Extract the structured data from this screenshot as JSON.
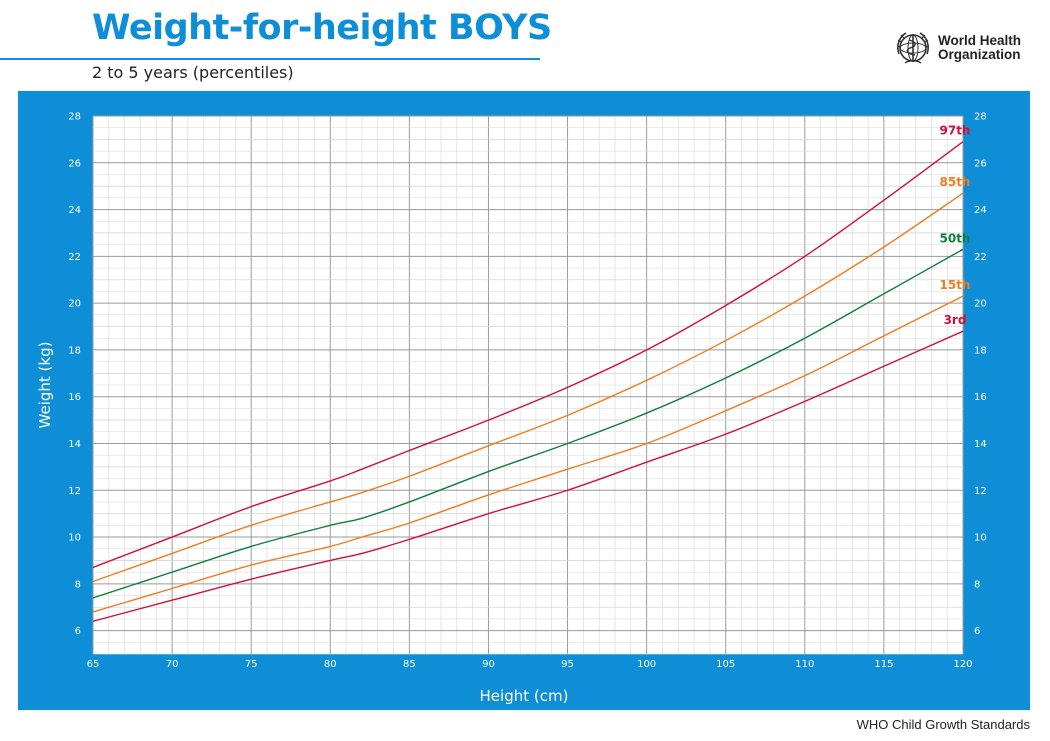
{
  "header": {
    "title": "Weight-for-height BOYS",
    "subtitle": "2 to 5 years (percentiles)"
  },
  "logo": {
    "line1": "World Health",
    "line2": "Organization",
    "icon": "who-emblem-icon"
  },
  "footer": {
    "text": "WHO Child Growth Standards"
  },
  "colors": {
    "panel": "#0d8ed6",
    "grid_major": "#9a9a9a",
    "grid_minor": "#d6d6d6",
    "p3": "#d1103c",
    "p15": "#ef7d1f",
    "p50": "#0e7f3a",
    "p85": "#ef7d1f",
    "p97": "#d1103c"
  },
  "chart_data": {
    "type": "line",
    "xlabel": "Height (cm)",
    "ylabel": "Weight (kg)",
    "xlim": [
      65,
      120
    ],
    "ylim": [
      5,
      28
    ],
    "x_ticks": [
      "65",
      "70",
      "75",
      "80",
      "85",
      "90",
      "95",
      "100",
      "105",
      "110",
      "115",
      "120"
    ],
    "y_ticks": [
      "6",
      "8",
      "10",
      "12",
      "14",
      "16",
      "18",
      "20",
      "22",
      "24",
      "26",
      "28"
    ],
    "grid": true,
    "x": [
      65,
      70,
      75,
      80,
      82,
      85,
      90,
      95,
      100,
      105,
      110,
      115,
      120
    ],
    "series": [
      {
        "name": "97th",
        "color": "#d1103c",
        "values": [
          8.7,
          10.0,
          11.3,
          12.4,
          12.9,
          13.7,
          15.0,
          16.4,
          18.0,
          19.9,
          22.0,
          24.4,
          26.9
        ]
      },
      {
        "name": "85th",
        "color": "#ef7d1f",
        "values": [
          8.1,
          9.3,
          10.5,
          11.5,
          11.9,
          12.6,
          13.9,
          15.2,
          16.7,
          18.4,
          20.3,
          22.4,
          24.7
        ]
      },
      {
        "name": "50th",
        "color": "#0e7f3a",
        "values": [
          7.4,
          8.5,
          9.6,
          10.5,
          10.8,
          11.5,
          12.8,
          14.0,
          15.3,
          16.8,
          18.5,
          20.4,
          22.3
        ]
      },
      {
        "name": "15th",
        "color": "#ef7d1f",
        "values": [
          6.8,
          7.8,
          8.8,
          9.6,
          10.0,
          10.6,
          11.8,
          12.9,
          14.0,
          15.4,
          16.9,
          18.6,
          20.3
        ]
      },
      {
        "name": "3rd",
        "color": "#d1103c",
        "values": [
          6.4,
          7.3,
          8.2,
          9.0,
          9.3,
          9.9,
          11.0,
          12.0,
          13.2,
          14.4,
          15.8,
          17.3,
          18.8
        ]
      }
    ]
  }
}
